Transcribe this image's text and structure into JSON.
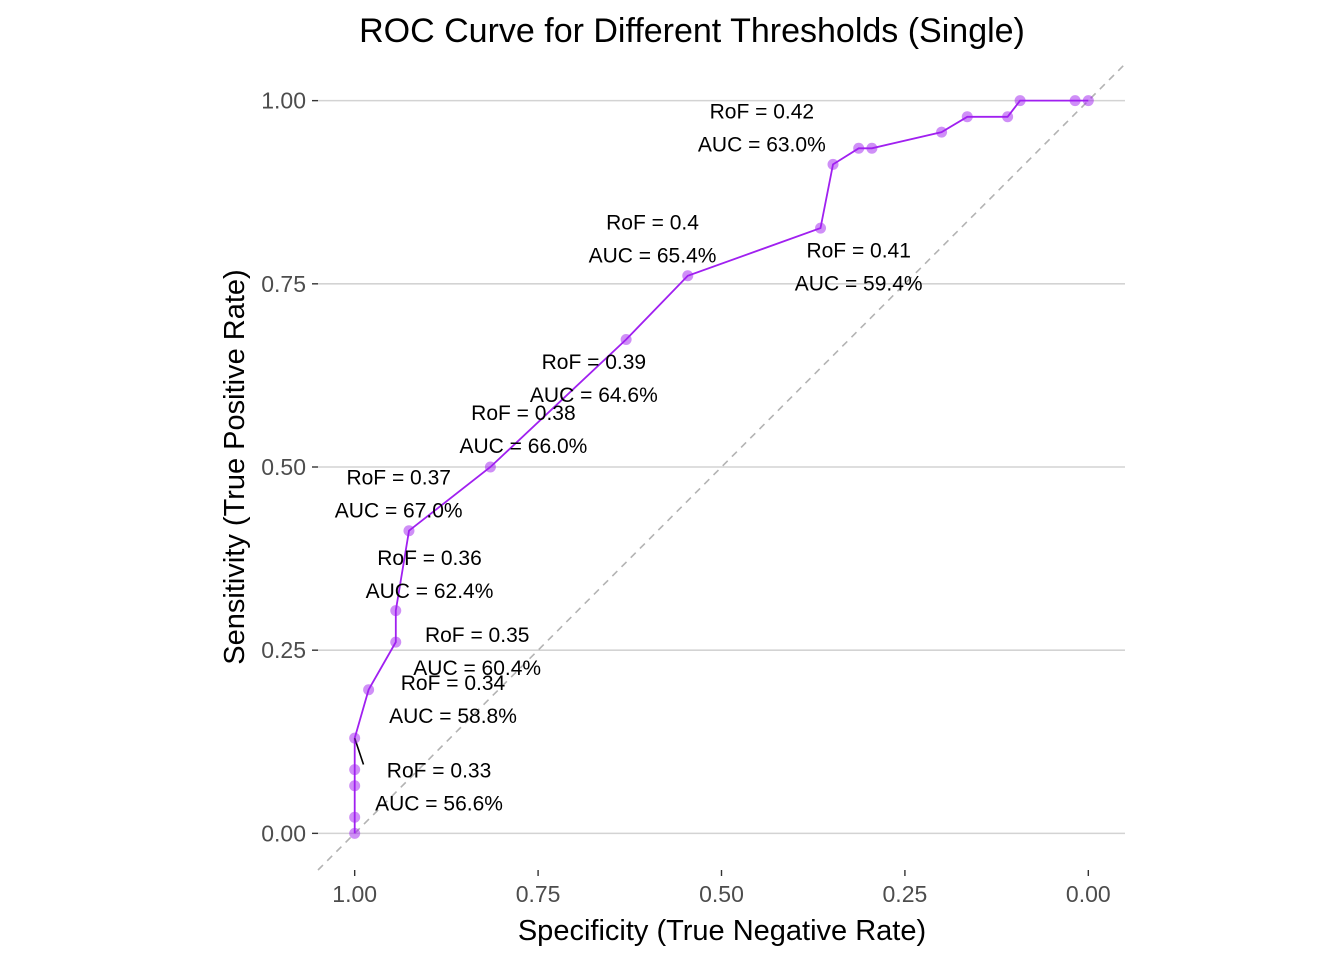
{
  "chart_data": {
    "type": "line",
    "title": "ROC Curve for Different Thresholds (Single)",
    "xlabel": "Specificity (True Negative Rate)",
    "ylabel": "Sensitivity (True Positive Rate)",
    "xlim": [
      1.05,
      -0.05
    ],
    "ylim": [
      -0.05,
      1.05
    ],
    "x_reversed": true,
    "x_ticks": [
      1.0,
      0.75,
      0.5,
      0.25,
      0.0
    ],
    "x_tick_labels": [
      "1.00",
      "0.75",
      "0.50",
      "0.25",
      "0.00"
    ],
    "y_ticks": [
      0.0,
      0.25,
      0.5,
      0.75,
      1.0
    ],
    "y_tick_labels": [
      "0.00",
      "0.25",
      "0.50",
      "0.75",
      "1.00"
    ],
    "grid": "horizontal-major",
    "legend": "none",
    "line_color": "#a020f0",
    "point_color": "#a020f0",
    "reference_line": {
      "from": [
        1.05,
        -0.05
      ],
      "to": [
        -0.05,
        1.05
      ],
      "style": "dashed",
      "color": "#b3b3b3"
    },
    "points": [
      {
        "specificity": 1.0,
        "sensitivity": 0.0
      },
      {
        "specificity": 1.0,
        "sensitivity": 0.022
      },
      {
        "specificity": 1.0,
        "sensitivity": 0.065
      },
      {
        "specificity": 1.0,
        "sensitivity": 0.087
      },
      {
        "specificity": 1.0,
        "sensitivity": 0.13
      },
      {
        "specificity": 0.981,
        "sensitivity": 0.196
      },
      {
        "specificity": 0.944,
        "sensitivity": 0.261
      },
      {
        "specificity": 0.944,
        "sensitivity": 0.304
      },
      {
        "specificity": 0.926,
        "sensitivity": 0.413
      },
      {
        "specificity": 0.815,
        "sensitivity": 0.5
      },
      {
        "specificity": 0.63,
        "sensitivity": 0.674
      },
      {
        "specificity": 0.546,
        "sensitivity": 0.761
      },
      {
        "specificity": 0.365,
        "sensitivity": 0.826
      },
      {
        "specificity": 0.348,
        "sensitivity": 0.913
      },
      {
        "specificity": 0.313,
        "sensitivity": 0.935
      },
      {
        "specificity": 0.295,
        "sensitivity": 0.935
      },
      {
        "specificity": 0.2,
        "sensitivity": 0.957
      },
      {
        "specificity": 0.165,
        "sensitivity": 0.978
      },
      {
        "specificity": 0.11,
        "sensitivity": 0.978
      },
      {
        "specificity": 0.093,
        "sensitivity": 1.0
      },
      {
        "specificity": 0.018,
        "sensitivity": 1.0
      },
      {
        "specificity": 0.0,
        "sensitivity": 1.0
      }
    ],
    "annotations": [
      {
        "ref": "0.33",
        "auc": "56.6%",
        "rof_text": "RoF = 0.33",
        "auc_text": "AUC = 56.6%",
        "x": 0.885,
        "y": 0.065
      },
      {
        "ref": "0.34",
        "auc": "58.8%",
        "rof_text": "RoF = 0.34",
        "auc_text": "AUC = 58.8%",
        "x": 0.866,
        "y": 0.185
      },
      {
        "ref": "0.35",
        "auc": "60.4%",
        "rof_text": "RoF = 0.35",
        "auc_text": "AUC = 60.4%",
        "x": 0.833,
        "y": 0.25
      },
      {
        "ref": "0.36",
        "auc": "62.4%",
        "rof_text": "RoF = 0.36",
        "auc_text": "AUC = 62.4%",
        "x": 0.898,
        "y": 0.355
      },
      {
        "ref": "0.37",
        "auc": "67.0%",
        "rof_text": "RoF = 0.37",
        "auc_text": "AUC = 67.0%",
        "x": 0.94,
        "y": 0.465
      },
      {
        "ref": "0.38",
        "auc": "66.0%",
        "rof_text": "RoF = 0.38",
        "auc_text": "AUC = 66.0%",
        "x": 0.77,
        "y": 0.553
      },
      {
        "ref": "0.39",
        "auc": "64.6%",
        "rof_text": "RoF = 0.39",
        "auc_text": "AUC = 64.6%",
        "x": 0.674,
        "y": 0.623
      },
      {
        "ref": "0.4",
        "auc": "65.4%",
        "rof_text": "RoF = 0.4",
        "auc_text": "AUC = 65.4%",
        "x": 0.594,
        "y": 0.813
      },
      {
        "ref": "0.41",
        "auc": "59.4%",
        "rof_text": "RoF = 0.41",
        "auc_text": "AUC = 59.4%",
        "x": 0.313,
        "y": 0.775
      },
      {
        "ref": "0.42",
        "auc": "63.0%",
        "rof_text": "RoF = 0.42",
        "auc_text": "AUC = 63.0%",
        "x": 0.445,
        "y": 0.965
      }
    ],
    "leader_line": {
      "from": [
        1.0,
        0.13
      ],
      "to": [
        0.988,
        0.094
      ]
    }
  }
}
